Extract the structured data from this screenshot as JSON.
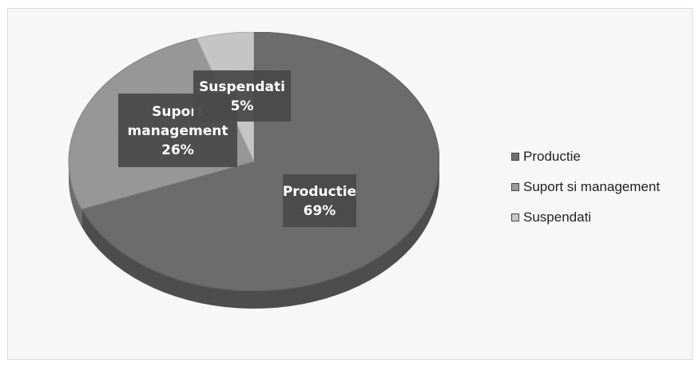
{
  "chart_data": {
    "type": "pie",
    "title": "",
    "categories": [
      "Productie",
      "Suport si management",
      "Suspendati"
    ],
    "values": [
      69,
      26,
      5
    ],
    "unit": "%",
    "legend_position": "right",
    "colors": {
      "Productie": "#6e6e6e",
      "Suport si management": "#9a9a9a",
      "Suspendati": "#c9c9c9"
    },
    "data_labels": [
      {
        "category": "Productie",
        "lines": [
          "Productie",
          "69%"
        ]
      },
      {
        "category": "Suport si management",
        "lines": [
          "Suport",
          "management",
          "26%"
        ]
      },
      {
        "category": "Suspendati",
        "lines": [
          "Suspendati",
          "5%"
        ]
      }
    ],
    "legend": [
      "Productie",
      "Suport si management",
      "Suspendati"
    ]
  }
}
